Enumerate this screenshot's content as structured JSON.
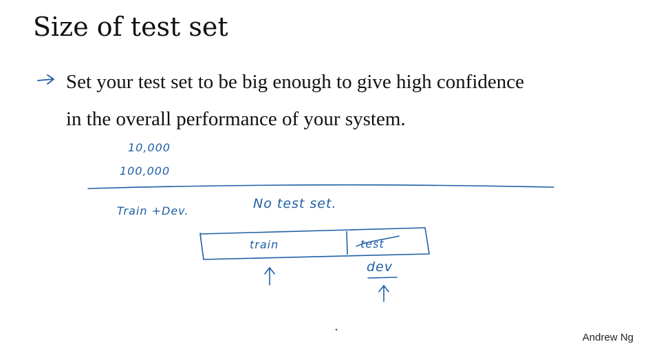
{
  "slide": {
    "title": "Size of test set",
    "bullet_line_1": "Set your test set to be big enough to give high confidence",
    "bullet_line_2": "in the overall performance of your system.",
    "bullet_icon": "handwritten-arrow-icon",
    "credit": "Andrew Ng"
  },
  "annotations": {
    "value_1": "10,000",
    "value_2": "100,000",
    "train_dev": "Train +Dev.",
    "no_test_set": "No test set.",
    "train_label": "train",
    "test_label": "test",
    "dev_label": "dev",
    "ink_color": "#1f5fa6"
  }
}
